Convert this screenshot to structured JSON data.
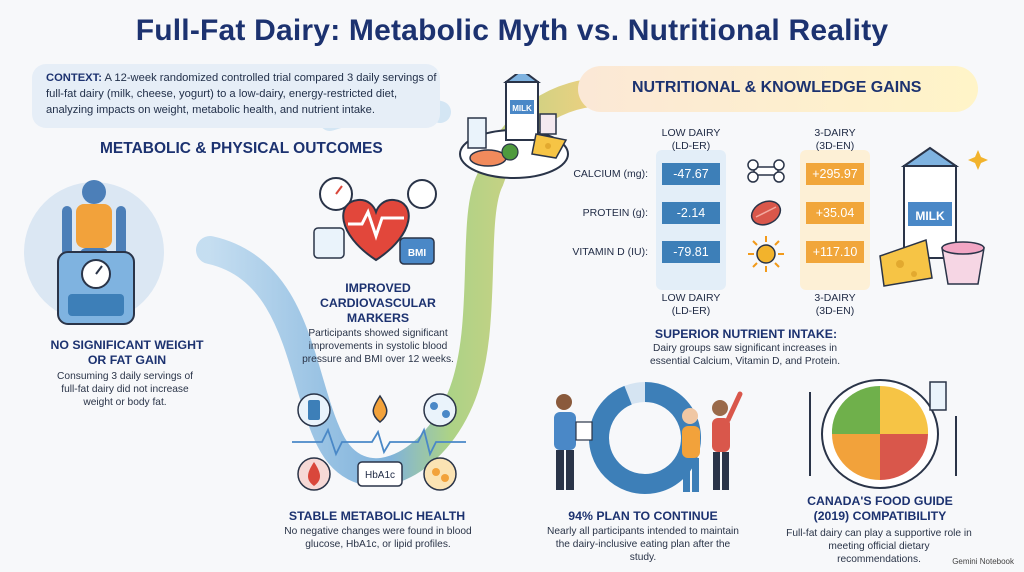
{
  "title": "Full-Fat Dairy: Metabolic Myth vs. Nutritional Reality",
  "context": {
    "label": "CONTEXT:",
    "text": "A 12-week randomized controlled trial compared 3 daily servings of full-fat dairy (milk, cheese, yogurt) to a low-dairy, energy-restricted diet, analyzing impacts on weight, metabolic health, and nutrient intake."
  },
  "metabolic": {
    "heading": "METABOLIC & PHYSICAL OUTCOMES",
    "weight": {
      "title_line1": "NO SIGNIFICANT WEIGHT",
      "title_line2": "OR FAT GAIN",
      "body": "Consuming 3 daily servings of full-fat dairy did not increase weight or body fat."
    },
    "cardio": {
      "title_line1": "IMPROVED",
      "title_line2": "CARDIOVASCULAR",
      "title_line3": "MARKERS",
      "body": "Participants showed significant improvements in systolic blood pressure and BMI over 12 weeks.",
      "bmi_label": "BMI"
    },
    "health": {
      "title": "STABLE METABOLIC HEALTH",
      "body": "No negative changes were found in blood glucose, HbA1c, or lipid profiles.",
      "hba1c_label": "HbA1c"
    }
  },
  "nutrition": {
    "heading": "NUTRITIONAL & KNOWLEDGE GAINS",
    "low_head_line1": "LOW DAIRY",
    "low_head_line2": "(LD-ER)",
    "high_head_line1": "3-DAIRY",
    "high_head_line2": "(3D-EN)",
    "rows": [
      {
        "label": "CALCIUM (mg):",
        "low": "-47.67",
        "high": "+295.97"
      },
      {
        "label": "PROTEIN (g):",
        "low": "-2.14",
        "high": "+35.04"
      },
      {
        "label": "VITAMIN D (IU):",
        "low": "-79.81",
        "high": "+117.10"
      }
    ],
    "summary_title": "SUPERIOR NUTRIENT INTAKE:",
    "summary_body": "Dairy groups saw significant increases in essential Calcium, Vitamin D, and Protein.",
    "milk_label": "MILK"
  },
  "plan": {
    "title": "94% PLAN TO CONTINUE",
    "body": "Nearly all participants intended to maintain the dairy-inclusive eating plan after the study.",
    "percent": 94
  },
  "guide": {
    "title_line1": "CANADA'S FOOD GUIDE",
    "title_line2": "(2019) COMPATIBILITY",
    "body": "Full-fat dairy can play a supportive role in meeting official dietary recommendations."
  },
  "watermark": "Gemini Notebook",
  "colors": {
    "navy": "#1c3270",
    "low_cell": "#3d7fb8",
    "high_cell": "#f1a63a",
    "path_blue": "#5b9bd1",
    "path_green": "#b9d36a"
  }
}
